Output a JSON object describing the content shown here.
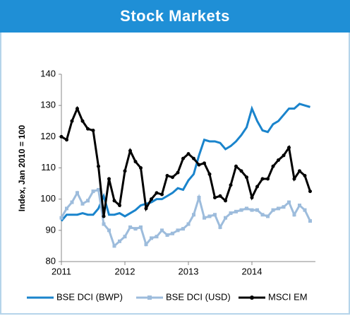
{
  "header": {
    "title": "Stock Markets"
  },
  "chart_data": {
    "type": "line",
    "y_label": "Index, Jan 2010 = 100",
    "categories": [
      "2011",
      null,
      null,
      null,
      null,
      null,
      null,
      null,
      null,
      null,
      null,
      null,
      "2012",
      null,
      null,
      null,
      null,
      null,
      null,
      null,
      null,
      null,
      null,
      null,
      "2013",
      null,
      null,
      null,
      null,
      null,
      null,
      null,
      null,
      null,
      null,
      null,
      "2014",
      null,
      null,
      null,
      null,
      null,
      null,
      null,
      null,
      null,
      null,
      null
    ],
    "ylim": [
      80,
      140
    ],
    "yticks": [
      80,
      90,
      100,
      110,
      120,
      130,
      140
    ],
    "grid": false,
    "legend": "bottom",
    "series": [
      {
        "name": "BSE DCI (BWP)",
        "color": "#1a84cc",
        "marker": false,
        "values": [
          93,
          95,
          95,
          95,
          95.5,
          95,
          95,
          97,
          101,
          95,
          95,
          95.5,
          94.5,
          95.5,
          96.5,
          98,
          98.5,
          99,
          100,
          100,
          101,
          102,
          103.5,
          103,
          106,
          108,
          114,
          119,
          118.5,
          118.5,
          118,
          116,
          117,
          118.5,
          120.5,
          123,
          129,
          125,
          122,
          121.5,
          124,
          125,
          127,
          129,
          129,
          130.5,
          130,
          129.5
        ]
      },
      {
        "name": "BSE DCI (USD)",
        "color": "#9dbcdc",
        "marker": true,
        "values": [
          94,
          97,
          99,
          102,
          98.5,
          99.5,
          102.5,
          103,
          92,
          90,
          85,
          86.5,
          88,
          91,
          90.5,
          91,
          85.5,
          87.5,
          88,
          90,
          88.5,
          89,
          90,
          90.5,
          92,
          95,
          100.5,
          94,
          94.5,
          95,
          91,
          94,
          95.5,
          96,
          96.5,
          97,
          96.5,
          96.5,
          95,
          94.5,
          96.5,
          97,
          97.5,
          99,
          95,
          98,
          96.5,
          93
        ]
      },
      {
        "name": "MSCI EM",
        "color": "#000000",
        "marker": true,
        "values": [
          120,
          119,
          125,
          129,
          125,
          122.5,
          122,
          110.5,
          94.5,
          106.5,
          99.5,
          98,
          109,
          115.5,
          112,
          110,
          97,
          100,
          102,
          101.5,
          107.5,
          107,
          108.5,
          113,
          114.5,
          113,
          111,
          111.5,
          108,
          100.5,
          101,
          99.5,
          104.5,
          110.5,
          109,
          107,
          100.5,
          104,
          106.5,
          106.5,
          110.5,
          112.5,
          114,
          116.5,
          106.5,
          109,
          107.5,
          102.5
        ]
      }
    ]
  }
}
